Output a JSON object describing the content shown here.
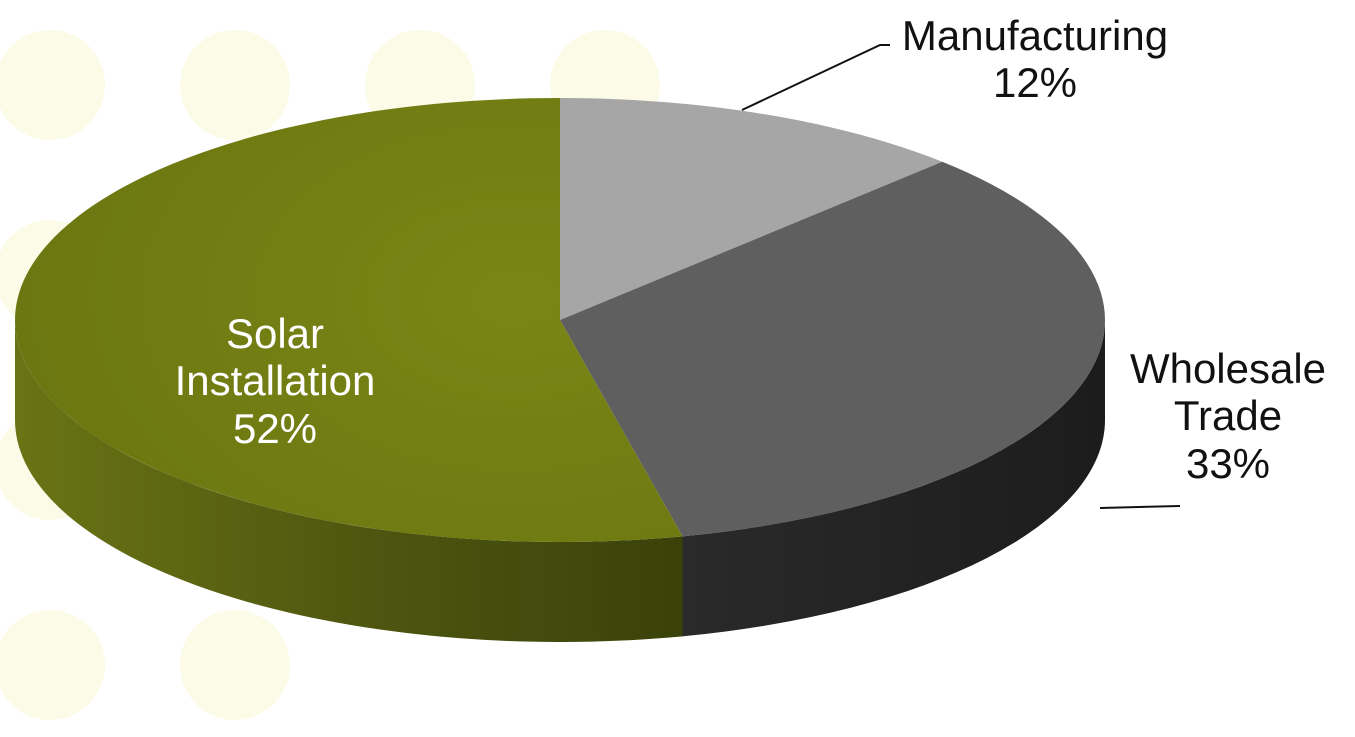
{
  "chart_data": {
    "type": "pie",
    "style": "3d",
    "title": "",
    "slices": [
      {
        "name": "Manufacturing",
        "name_lines": [
          "Manufacturing"
        ],
        "value": 12,
        "value_label": "12%",
        "color": "#a6a6a6"
      },
      {
        "name": "Wholesale Trade",
        "name_lines": [
          "Wholesale",
          "Trade"
        ],
        "value": 33,
        "value_label": "33%",
        "color": "#5f5f5f"
      },
      {
        "name": "Solar Installation",
        "name_lines": [
          "Solar",
          "Installation"
        ],
        "value": 52,
        "value_label": "52%",
        "color": "#717c11"
      }
    ],
    "start_angle": "12 o'clock, clockwise",
    "label_text_color": "#111111",
    "inside_label_text_color": "#ffffff",
    "background_dot_color": "#fbfbe8"
  }
}
